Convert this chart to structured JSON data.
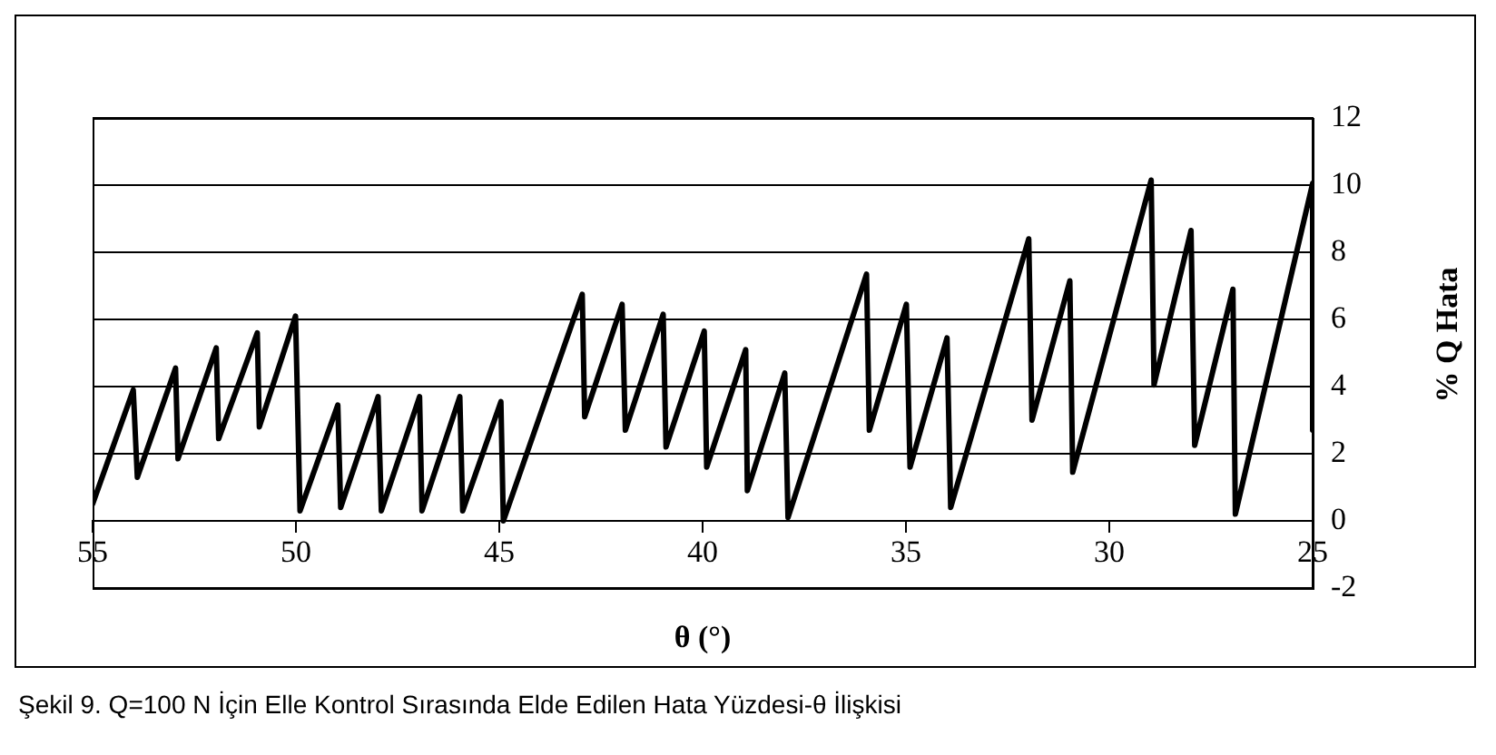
{
  "chart_data": {
    "type": "line",
    "xlabel": "θ (°)",
    "ylabel": "% Q Hata",
    "annotations": [
      "Şekil 9. Q=100 N İçin Elle Kontrol Sırasında Elde Edilen Hata Yüzdesi-θ İlişkisi"
    ],
    "series": [
      {
        "color": "#000000",
        "x": [
          55,
          54.0,
          53.9,
          52.96,
          52.9,
          51.96,
          51.9,
          50.95,
          50.9,
          50.01,
          49.9,
          48.97,
          48.9,
          47.98,
          47.9,
          46.96,
          46.9,
          45.97,
          45.9,
          44.96,
          44.9,
          42.96,
          42.9,
          41.98,
          41.9,
          40.97,
          40.9,
          39.96,
          39.9,
          38.94,
          38.9,
          37.98,
          37.9,
          35.97,
          35.9,
          34.99,
          34.9,
          33.99,
          33.9,
          31.98,
          31.9,
          30.97,
          30.9,
          28.97,
          28.9,
          27.99,
          27.9,
          26.96,
          26.9,
          25.0,
          25.0
        ],
        "values": [
          0.5,
          3.9,
          1.3,
          4.55,
          1.85,
          5.15,
          2.45,
          5.6,
          2.8,
          6.1,
          0.3,
          3.45,
          0.4,
          3.7,
          0.3,
          3.7,
          0.3,
          3.7,
          0.3,
          3.55,
          0.0,
          6.75,
          3.1,
          6.45,
          2.7,
          6.15,
          2.2,
          5.65,
          1.6,
          5.1,
          0.9,
          4.4,
          0.1,
          7.35,
          2.7,
          6.45,
          1.6,
          5.45,
          0.4,
          8.4,
          3.0,
          7.15,
          1.45,
          10.15,
          4.05,
          8.65,
          2.25,
          6.9,
          0.2,
          10.05,
          2.7
        ]
      }
    ],
    "xlim": [
      55,
      25
    ],
    "xticks": [
      55,
      50,
      45,
      40,
      35,
      30,
      25
    ],
    "ylim": [
      -2,
      12
    ],
    "yticks": [
      -2,
      0,
      2,
      4,
      6,
      8,
      10,
      12
    ],
    "grid": "y",
    "legend": false,
    "marker": "none",
    "line_style": "solid"
  }
}
